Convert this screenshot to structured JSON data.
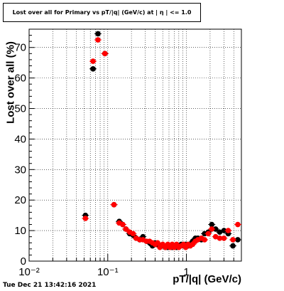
{
  "title": "Lost over all for Primary vs pT/|q| (GeV/c) at | η | <= 1.0",
  "datestamp": "Tue Dec 21 13:42:16 2021",
  "chart_data": {
    "type": "scatter",
    "xlabel": "pT/|q| (GeV/c)",
    "ylabel": "Lost over all (%)",
    "xscale": "log",
    "xlim": [
      0.01,
      5.0
    ],
    "ylim": [
      0,
      76
    ],
    "grid": true,
    "x_ticks": [
      {
        "value": 0.01,
        "label": "10⁻²"
      },
      {
        "value": 0.1,
        "label": "10⁻¹"
      },
      {
        "value": 1,
        "label": "1"
      }
    ],
    "y_ticks": [
      0,
      10,
      20,
      30,
      40,
      50,
      60,
      70
    ],
    "colors": {
      "series_black": "#000000",
      "series_red": "#ff0000"
    },
    "series": [
      {
        "color": "black",
        "points": [
          [
            0.052,
            15.0
          ],
          [
            0.065,
            63.0
          ],
          [
            0.075,
            74.5
          ],
          [
            0.092,
            68.0
          ],
          [
            0.12,
            18.5
          ],
          [
            0.14,
            13.0
          ],
          [
            0.155,
            12.0
          ],
          [
            0.17,
            10.5
          ],
          [
            0.19,
            9.0
          ],
          [
            0.21,
            8.5
          ],
          [
            0.23,
            7.5
          ],
          [
            0.255,
            7.0
          ],
          [
            0.28,
            8.0
          ],
          [
            0.31,
            6.5
          ],
          [
            0.34,
            6.0
          ],
          [
            0.37,
            5.0
          ],
          [
            0.4,
            6.0
          ],
          [
            0.43,
            5.5
          ],
          [
            0.46,
            5.0
          ],
          [
            0.5,
            5.0
          ],
          [
            0.54,
            4.5
          ],
          [
            0.58,
            4.5
          ],
          [
            0.62,
            5.0
          ],
          [
            0.66,
            4.5
          ],
          [
            0.7,
            5.0
          ],
          [
            0.75,
            4.5
          ],
          [
            0.8,
            5.0
          ],
          [
            0.86,
            5.5
          ],
          [
            0.92,
            5.0
          ],
          [
            0.98,
            5.5
          ],
          [
            1.05,
            5.0
          ],
          [
            1.12,
            5.5
          ],
          [
            1.2,
            6.5
          ],
          [
            1.3,
            7.5
          ],
          [
            1.4,
            7.5
          ],
          [
            1.55,
            7.0
          ],
          [
            1.7,
            9.0
          ],
          [
            1.9,
            9.5
          ],
          [
            2.1,
            12.0
          ],
          [
            2.35,
            10.5
          ],
          [
            2.65,
            9.5
          ],
          [
            3.0,
            10.0
          ],
          [
            3.4,
            9.0
          ],
          [
            3.9,
            5.0
          ],
          [
            4.5,
            7.0
          ]
        ]
      },
      {
        "color": "red",
        "points": [
          [
            0.052,
            14.0
          ],
          [
            0.065,
            65.5
          ],
          [
            0.075,
            72.5
          ],
          [
            0.092,
            68.0
          ],
          [
            0.12,
            18.5
          ],
          [
            0.14,
            12.5
          ],
          [
            0.155,
            12.0
          ],
          [
            0.17,
            10.5
          ],
          [
            0.19,
            9.5
          ],
          [
            0.21,
            9.0
          ],
          [
            0.23,
            7.5
          ],
          [
            0.255,
            7.0
          ],
          [
            0.28,
            7.0
          ],
          [
            0.31,
            6.5
          ],
          [
            0.34,
            6.5
          ],
          [
            0.37,
            6.0
          ],
          [
            0.4,
            5.5
          ],
          [
            0.43,
            6.0
          ],
          [
            0.46,
            4.5
          ],
          [
            0.5,
            5.5
          ],
          [
            0.54,
            4.5
          ],
          [
            0.58,
            5.5
          ],
          [
            0.62,
            4.5
          ],
          [
            0.66,
            5.5
          ],
          [
            0.7,
            4.5
          ],
          [
            0.75,
            5.5
          ],
          [
            0.8,
            4.5
          ],
          [
            0.86,
            5.0
          ],
          [
            0.92,
            5.5
          ],
          [
            0.98,
            4.5
          ],
          [
            1.05,
            5.5
          ],
          [
            1.12,
            5.0
          ],
          [
            1.2,
            5.5
          ],
          [
            1.3,
            6.5
          ],
          [
            1.4,
            7.0
          ],
          [
            1.55,
            7.5
          ],
          [
            1.7,
            7.0
          ],
          [
            1.9,
            9.0
          ],
          [
            2.1,
            10.5
          ],
          [
            2.35,
            8.0
          ],
          [
            2.65,
            7.5
          ],
          [
            3.0,
            7.5
          ],
          [
            3.4,
            10.0
          ],
          [
            3.9,
            7.0
          ],
          [
            4.5,
            12.0
          ]
        ]
      }
    ]
  }
}
